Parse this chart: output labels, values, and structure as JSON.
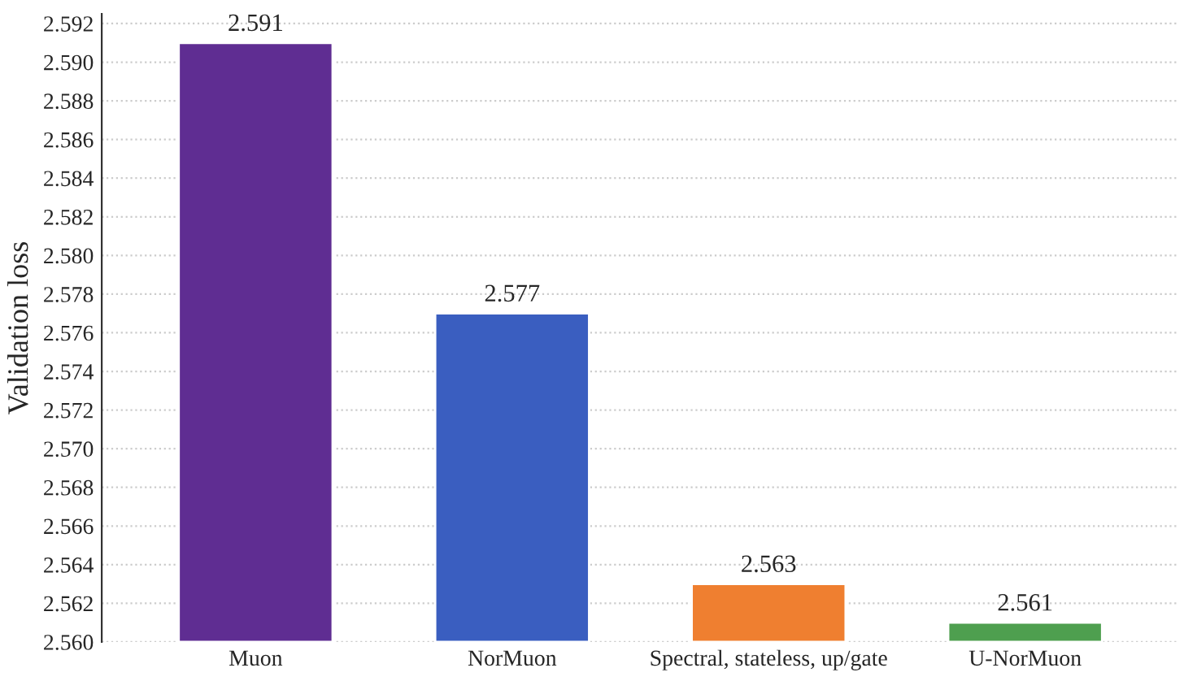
{
  "chart_data": {
    "type": "bar",
    "ylabel": "Validation loss",
    "categories": [
      "Muon",
      "NorMuon",
      "Spectral, stateless, up/gate",
      "U-NorMuon"
    ],
    "values": [
      2.591,
      2.577,
      2.563,
      2.561
    ],
    "data_labels": true,
    "colors": [
      "#5f2d92",
      "#3a5ec0",
      "#ef7f30",
      "#4e9f4f"
    ],
    "ylim": [
      2.56,
      2.5925
    ],
    "yticks": [
      {
        "value": 2.56,
        "label": "2.560"
      },
      2.562,
      2.564,
      2.566,
      2.568,
      {
        "value": 2.57,
        "label": "2.570"
      },
      2.572,
      2.574,
      2.576,
      2.578,
      {
        "value": 2.58,
        "label": "2.580"
      },
      2.582,
      2.584,
      2.586,
      2.588,
      {
        "value": 2.59,
        "label": "2.590"
      },
      2.592
    ],
    "grid": "y"
  }
}
